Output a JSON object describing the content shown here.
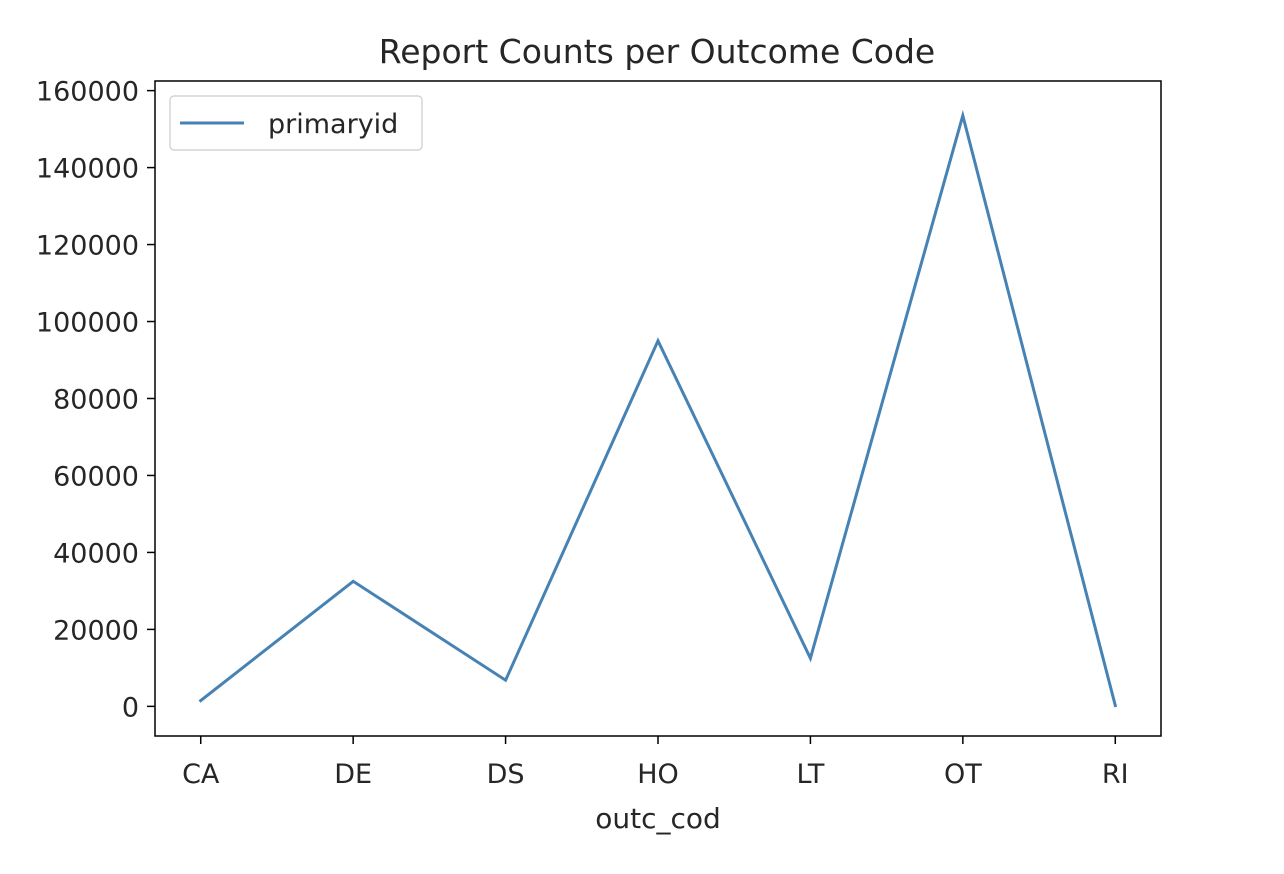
{
  "chart_data": {
    "type": "line",
    "title": "Report Counts per Outcome Code",
    "xlabel": "outc_cod",
    "ylabel": "",
    "categories": [
      "CA",
      "DE",
      "DS",
      "HO",
      "LT",
      "OT",
      "RI"
    ],
    "series": [
      {
        "name": "primaryid",
        "values": [
          1500,
          32500,
          6800,
          95000,
          12500,
          153500,
          200
        ],
        "color": "#4682b4"
      }
    ],
    "ylim": [
      -7700,
      162500
    ],
    "yticks": [
      0,
      20000,
      40000,
      60000,
      80000,
      100000,
      120000,
      140000,
      160000
    ],
    "ytick_labels": [
      "0",
      "20000",
      "40000",
      "60000",
      "80000",
      "100000",
      "120000",
      "140000",
      "160000"
    ],
    "grid": false,
    "legend_position": "upper-left"
  }
}
